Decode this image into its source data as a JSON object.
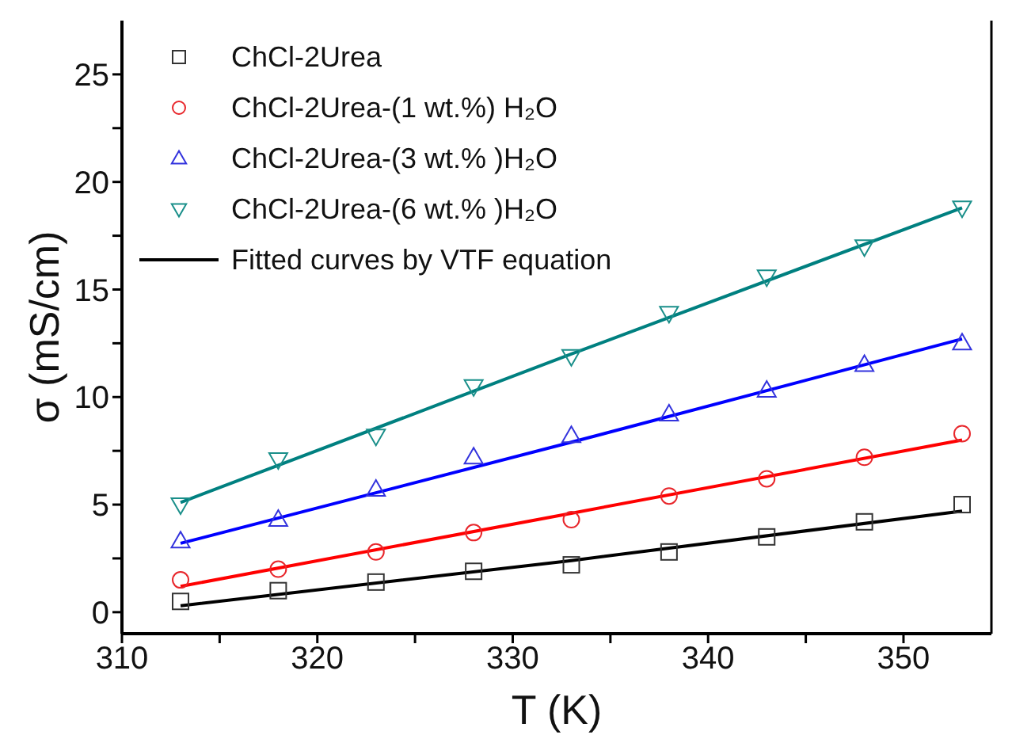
{
  "chart_data": {
    "type": "scatter",
    "xlabel": "T (K)",
    "ylabel": "σ (mS/cm)",
    "x": [
      313,
      318,
      323,
      328,
      333,
      338,
      343,
      348,
      353
    ],
    "xlim": [
      310,
      354.5
    ],
    "ylim": [
      -1,
      27.5
    ],
    "xticks": [
      310,
      {
        "value": 315,
        "label": null
      },
      320,
      {
        "value": 325,
        "label": null
      },
      330,
      {
        "value": 335,
        "label": null
      },
      340,
      {
        "value": 345,
        "label": null
      },
      350
    ],
    "yticks": [
      0,
      {
        "value": 2.5,
        "label": null
      },
      5,
      {
        "value": 7.5,
        "label": null
      },
      10,
      {
        "value": 12.5,
        "label": null
      },
      15,
      {
        "value": 17.5,
        "label": null
      },
      20,
      {
        "value": 22.5,
        "label": null
      },
      25
    ],
    "grid": false,
    "legend": "top left",
    "series": [
      {
        "name": "ChCl-2Urea",
        "marker": "square",
        "color": "#333333",
        "values": [
          0.5,
          1.0,
          1.4,
          1.9,
          2.2,
          2.8,
          3.5,
          4.2,
          5.0
        ]
      },
      {
        "name": "ChCl-2Urea-(1 wt.%) H₂O",
        "marker": "circle",
        "color": "#e8262b",
        "values": [
          1.5,
          2.0,
          2.8,
          3.7,
          4.3,
          5.4,
          6.2,
          7.2,
          8.3
        ]
      },
      {
        "name": "ChCl-2Urea-(3 wt.% )H₂O",
        "marker": "triangle",
        "color": "#3333dd",
        "values": [
          3.3,
          4.3,
          5.7,
          7.2,
          8.2,
          9.2,
          10.3,
          11.5,
          12.5
        ]
      },
      {
        "name": "ChCl-2Urea-(6 wt.% )H₂O",
        "marker": "triangle-down",
        "color": "#1a8f8a",
        "values": [
          5.0,
          7.1,
          8.2,
          10.5,
          11.9,
          13.9,
          15.6,
          17.0,
          18.8
        ]
      },
      {
        "name": "Fitted curves by VTF equation",
        "type": "line",
        "marker": "none",
        "line_style": "solid",
        "color": "#000000",
        "x": [
          313,
          333,
          353
        ],
        "values": [
          0.3,
          2.4,
          4.7
        ]
      },
      {
        "type": "line",
        "marker": "none",
        "line_style": "solid",
        "color": "#ff0000",
        "x": [
          313,
          333,
          353
        ],
        "values": [
          1.2,
          4.6,
          8.0
        ]
      },
      {
        "type": "line",
        "marker": "none",
        "line_style": "solid",
        "color": "#0000ff",
        "x": [
          313,
          333,
          353
        ],
        "values": [
          3.2,
          7.9,
          12.7
        ]
      },
      {
        "type": "line",
        "marker": "none",
        "line_style": "solid",
        "color": "#008080",
        "x": [
          313,
          333,
          353
        ],
        "values": [
          5.1,
          12.0,
          18.8
        ]
      }
    ]
  }
}
